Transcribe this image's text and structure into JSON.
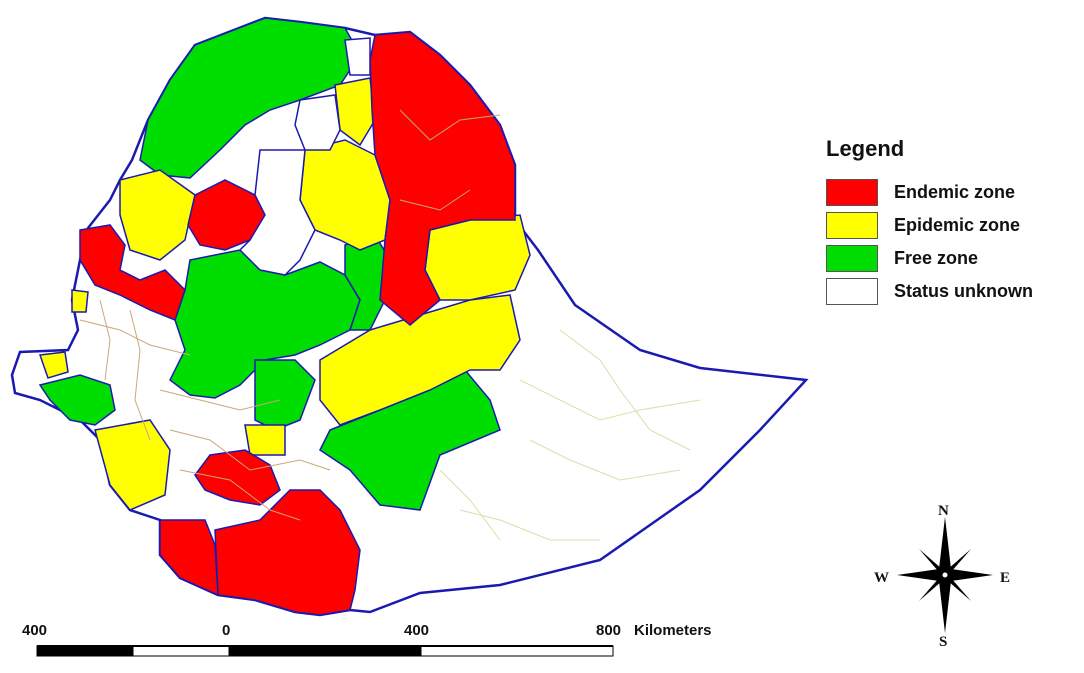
{
  "legend": {
    "title": "Legend",
    "items": [
      {
        "label": "Endemic zone",
        "color": "#ff0000"
      },
      {
        "label": "Epidemic zone",
        "color": "#ffff00"
      },
      {
        "label": "Free zone",
        "color": "#00dd00"
      },
      {
        "label": "Status unknown",
        "color": "#ffffff"
      }
    ]
  },
  "compass": {
    "north": "N",
    "south": "S",
    "east": "E",
    "west": "W"
  },
  "scale_bar": {
    "ticks": [
      "400",
      "0",
      "400",
      "800"
    ],
    "unit": "Kilometers"
  },
  "colors": {
    "endemic": "#ff0000",
    "epidemic": "#ffff00",
    "free": "#00dd00",
    "unknown": "#ffffff",
    "border": "#1a1ab0",
    "district_lines": "#c8a878",
    "east_lines": "#d8e0a8"
  }
}
